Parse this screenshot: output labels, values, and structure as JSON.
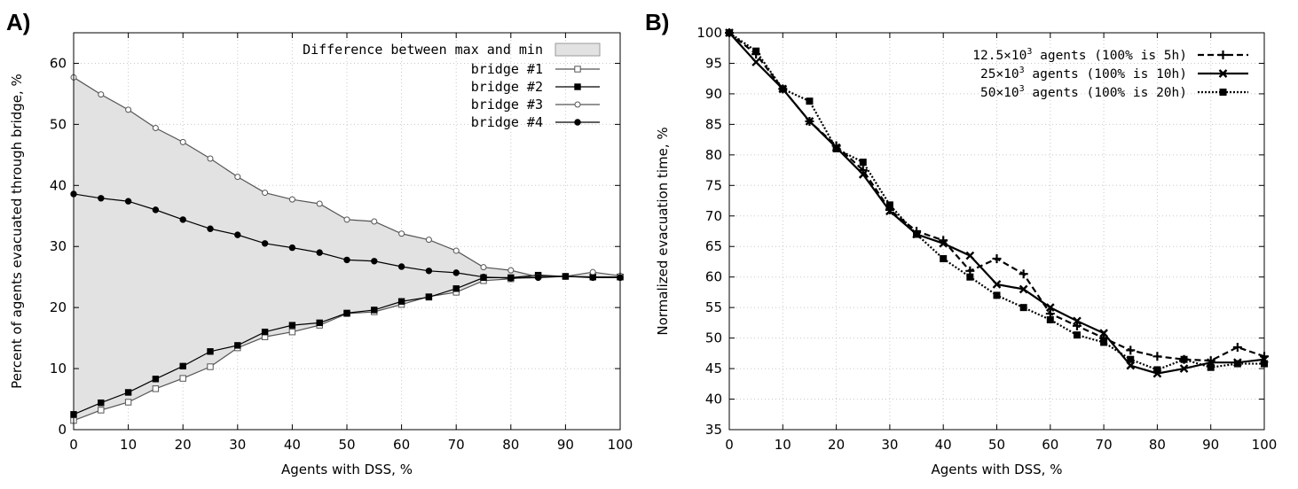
{
  "chart_data": [
    {
      "panel": "A)",
      "type": "line",
      "xlabel": "Agents with DSS, %",
      "ylabel": "Percent of agents evacuated through bridge, %",
      "xlim": [
        0,
        100
      ],
      "ylim": [
        0,
        65
      ],
      "xticks": [
        0,
        10,
        20,
        30,
        40,
        50,
        60,
        70,
        80,
        90,
        100
      ],
      "yticks": [
        0,
        10,
        20,
        30,
        40,
        50,
        60
      ],
      "grid": true,
      "legend_position": "top-right",
      "band_label": "Difference between max and min",
      "x": [
        0,
        5,
        10,
        15,
        20,
        25,
        30,
        35,
        40,
        45,
        50,
        55,
        60,
        65,
        70,
        75,
        80,
        85,
        90,
        95,
        100
      ],
      "series": [
        {
          "name": "bridge #1",
          "marker": "open-square",
          "color": "#555555",
          "values": [
            1.5,
            3.2,
            4.5,
            6.7,
            8.4,
            10.3,
            13.4,
            15.2,
            16.0,
            17.1,
            19.0,
            19.3,
            20.5,
            21.8,
            22.5,
            24.4,
            24.7,
            25.2,
            25.1,
            25.0,
            25.0
          ]
        },
        {
          "name": "bridge #2",
          "marker": "filled-square",
          "color": "#000000",
          "values": [
            2.5,
            4.4,
            6.1,
            8.3,
            10.4,
            12.8,
            13.8,
            16.0,
            17.1,
            17.5,
            19.1,
            19.6,
            21.0,
            21.7,
            23.1,
            24.9,
            24.9,
            25.3,
            25.1,
            25.0,
            25.0
          ]
        },
        {
          "name": "bridge #3",
          "marker": "open-circle",
          "color": "#555555",
          "values": [
            57.7,
            54.9,
            52.4,
            49.4,
            47.1,
            44.4,
            41.4,
            38.8,
            37.7,
            37.0,
            34.4,
            34.1,
            32.1,
            31.1,
            29.3,
            26.6,
            26.1,
            25.0,
            25.1,
            25.8,
            25.2
          ]
        },
        {
          "name": "bridge #4",
          "marker": "filled-circle",
          "color": "#000000",
          "values": [
            38.6,
            37.9,
            37.4,
            36.0,
            34.4,
            32.9,
            31.9,
            30.5,
            29.8,
            29.0,
            27.8,
            27.6,
            26.7,
            26.0,
            25.7,
            25.0,
            24.8,
            24.9,
            25.1,
            24.9,
            24.9
          ]
        }
      ]
    },
    {
      "panel": "B)",
      "type": "line",
      "xlabel": "Agents with DSS, %",
      "ylabel": "Normalized evacuation time, %",
      "xlim": [
        0,
        100
      ],
      "ylim": [
        35,
        100
      ],
      "xticks": [
        0,
        10,
        20,
        30,
        40,
        50,
        60,
        70,
        80,
        90,
        100
      ],
      "yticks": [
        35,
        40,
        45,
        50,
        55,
        60,
        65,
        70,
        75,
        80,
        85,
        90,
        95,
        100
      ],
      "grid": true,
      "legend_position": "top-right",
      "x": [
        0,
        5,
        10,
        15,
        20,
        25,
        30,
        35,
        40,
        45,
        50,
        55,
        60,
        65,
        70,
        75,
        80,
        85,
        90,
        95,
        100
      ],
      "series": [
        {
          "name_main": "12.5×10",
          "name_sup": "3",
          "name_rest": " agents (100% is 5h)",
          "marker": "plus",
          "dash": "dashed",
          "values": [
            100,
            96.5,
            90.8,
            85.5,
            81.5,
            77.5,
            71.0,
            67.5,
            66.0,
            61.0,
            63.0,
            60.5,
            54.0,
            52.0,
            50.0,
            48.0,
            47.0,
            46.5,
            46.3,
            48.5,
            47.0
          ]
        },
        {
          "name_main": "25×10",
          "name_sup": "3",
          "name_rest": " agents (100% is 10h)",
          "marker": "cross",
          "dash": "solid",
          "values": [
            100,
            95.2,
            90.8,
            85.5,
            81.2,
            76.8,
            70.8,
            67.0,
            65.5,
            63.5,
            58.8,
            58.0,
            55.0,
            52.8,
            50.8,
            45.5,
            44.2,
            45.0,
            46.0,
            46.0,
            46.5
          ]
        },
        {
          "name_main": "50×10",
          "name_sup": "3",
          "name_rest": " agents (100% is 20h)",
          "marker": "square",
          "dash": "dotted",
          "values": [
            100,
            97.0,
            90.8,
            88.8,
            81.0,
            78.8,
            71.8,
            67.0,
            63.0,
            60.0,
            57.0,
            55.0,
            53.0,
            50.5,
            49.3,
            46.5,
            44.8,
            46.5,
            45.2,
            45.8,
            45.8
          ]
        }
      ]
    }
  ]
}
